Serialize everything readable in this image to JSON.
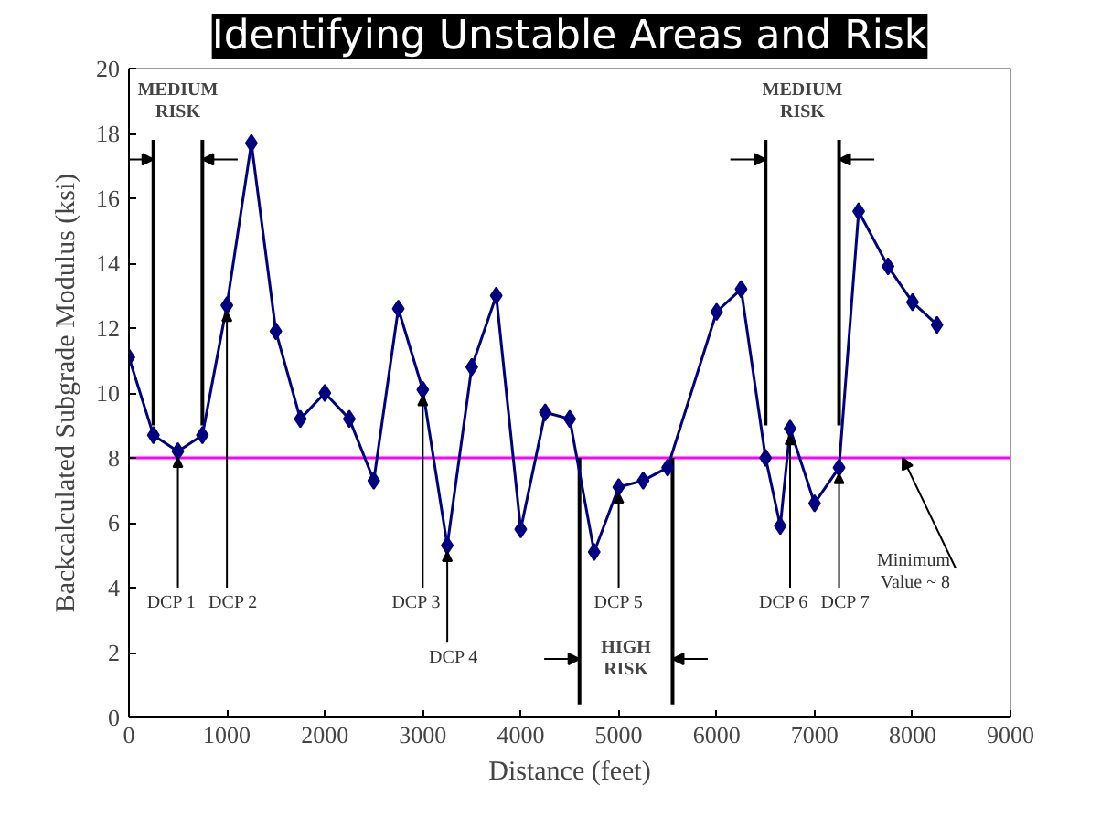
{
  "chart_data": {
    "type": "line",
    "title": "Identifying Unstable Areas and Risk",
    "xlabel": "Distance (feet)",
    "ylabel": "Backcalculated Subgrade Modulus (ksi)",
    "x": [
      0,
      250,
      500,
      750,
      1000,
      1250,
      1500,
      1750,
      2000,
      2250,
      2500,
      2750,
      3000,
      3250,
      3500,
      3750,
      4000,
      4250,
      4500,
      4750,
      5000,
      5250,
      5500,
      6000,
      6250,
      6500,
      6650,
      6750,
      7000,
      7250,
      7450,
      7750,
      8000,
      8250
    ],
    "series": [
      {
        "color": "#000080",
        "values": [
          11.1,
          8.7,
          8.2,
          8.7,
          12.7,
          17.7,
          11.9,
          9.2,
          10.0,
          9.2,
          7.3,
          12.6,
          10.1,
          5.3,
          10.8,
          13.0,
          5.8,
          9.4,
          9.2,
          5.1,
          7.1,
          7.3,
          7.7,
          12.5,
          13.2,
          8.0,
          5.9,
          8.9,
          6.6,
          7.7,
          15.6,
          13.9,
          12.8,
          12.1
        ]
      }
    ],
    "marker": "diamond",
    "line_style": "solid",
    "grid": false,
    "xlim": [
      0,
      9000
    ],
    "xticks": [
      0,
      1000,
      2000,
      3000,
      4000,
      5000,
      6000,
      7000,
      8000,
      9000
    ],
    "ylim": [
      0,
      20
    ],
    "yticks": [
      0,
      2,
      4,
      6,
      8,
      10,
      12,
      14,
      16,
      18,
      20
    ],
    "ref_lines": [
      {
        "axis": "y",
        "value": 8,
        "color": "#ff00ff"
      },
      {
        "axis": "x",
        "value": 250,
        "color": "#000000"
      },
      {
        "axis": "x",
        "value": 750,
        "color": "#000000"
      },
      {
        "axis": "x",
        "value": 4600,
        "color": "#000000"
      },
      {
        "axis": "x",
        "value": 5550,
        "color": "#000000"
      },
      {
        "axis": "x",
        "value": 6500,
        "color": "#000000"
      },
      {
        "axis": "x",
        "value": 7250,
        "color": "#000000"
      }
    ],
    "annotations": [
      "MEDIUM RISK",
      "HIGH RISK",
      "MEDIUM RISK",
      {
        "text": "DCP 1",
        "x": 500,
        "y": 8.2
      },
      {
        "text": "DCP 2",
        "x": 1000,
        "y": 12.7
      },
      {
        "text": "DCP 3",
        "x": 3000,
        "y": 10.1
      },
      {
        "text": "DCP 4",
        "x": 3250,
        "y": 5.3
      },
      {
        "text": "DCP 5",
        "x": 5000,
        "y": 7.1
      },
      {
        "text": "DCP 6",
        "x": 6750,
        "y": 8.9
      },
      {
        "text": "DCP 7",
        "x": 7250,
        "y": 7.7
      },
      {
        "text": "Minimum Value ~ 8",
        "x": 7900,
        "y": 8
      }
    ]
  }
}
